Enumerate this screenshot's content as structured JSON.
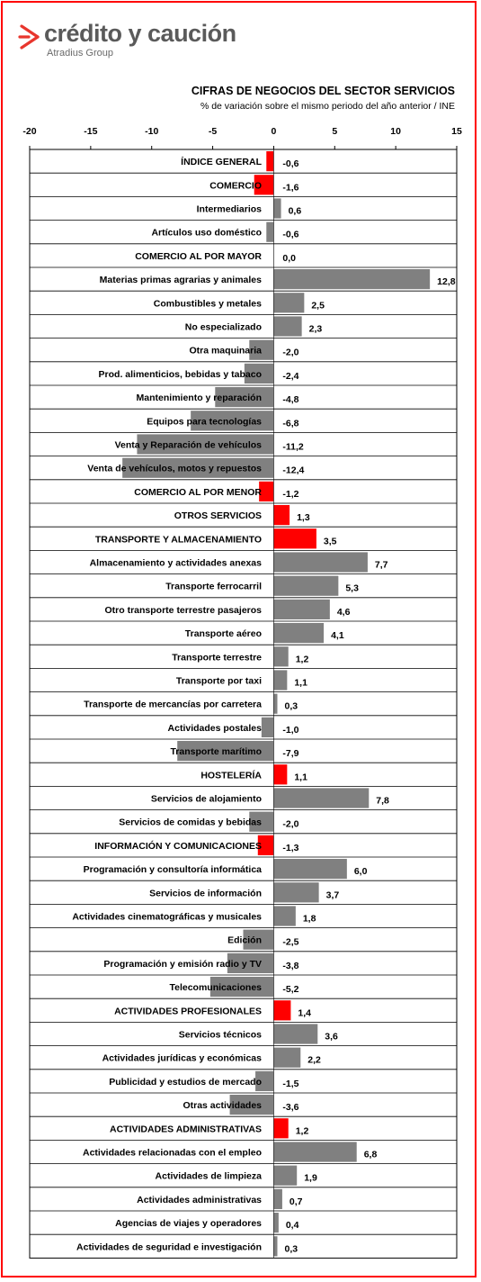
{
  "brand": {
    "name": "crédito y caución",
    "sub": "Atradius Group"
  },
  "colors": {
    "highlight": "#ff0000",
    "bar": "#808080",
    "frame": "#ff0000",
    "logo_accent": "#e8362d"
  },
  "chart_data": {
    "type": "bar",
    "orientation": "horizontal",
    "title": "CIFRAS DE NEGOCIOS DEL SECTOR SERVICIOS",
    "subtitle": "% de variación sobre el mismo periodo del año anterior / INE",
    "xlim": [
      -20,
      15
    ],
    "xticks": [
      -20,
      -15,
      -10,
      -5,
      0,
      5,
      10,
      15
    ],
    "xtick_labels": [
      "-20",
      "-15",
      "-10",
      "-5",
      "0",
      "5",
      "10",
      "15"
    ],
    "gridlines": "horizontal",
    "categories": [
      "ÍNDICE GENERAL",
      "COMERCIO",
      "Intermediarios",
      "Artículos uso doméstico",
      "COMERCIO AL POR MAYOR",
      "Materias primas agrarias  y animales",
      "Combustibles y metales",
      "No especializado",
      "Otra maquinaria",
      "Prod. alimenticios,  bebidas y tabaco",
      "Mantenimiento y reparación",
      "Equipos para tecnologías",
      "Venta y Reparación  de vehículos",
      "Venta de vehículos,  motos y repuestos",
      "COMERCIO AL POR MENOR",
      "OTROS SERVICIOS",
      "TRANSPORTE  Y ALMACENAMIENTO",
      "Almacenamiento y actividades  anexas",
      "Transporte ferrocarril",
      "Otro transporte terrestre pasajeros",
      "Transporte aéreo",
      "Transporte  terrestre",
      "Transporte  por taxi",
      "Transporte de mercancías  por carretera",
      "Actividades postales",
      "Transporte marítimo",
      "HOSTELERÍA",
      "Servicios de alojamiento",
      "Servicios de comidas y bebidas",
      "INFORMACIÓN Y COMUNICACIONES",
      "Programación y consultoría  informática",
      "Servicios de información",
      "Actividades cinematográficas  y musicales",
      "Edición",
      "Programación y emisión radio y TV",
      "Telecomunicaciones",
      "ACTIVIDADES PROFESIONALES",
      "Servicios técnicos",
      "Actividades jurídicas  y económicas",
      "Publicidad  y estudios de mercado",
      "Otras actividades",
      "ACTIVIDADES ADMINISTRATIVAS",
      "Actividades relacionadas  con el empleo",
      "Actividades de limpieza",
      "Actividades administrativas",
      "Agencias de viajes y operadores",
      "Actividades de seguridad e investigación"
    ],
    "values": [
      -0.6,
      -1.6,
      0.6,
      -0.6,
      0.0,
      12.8,
      2.5,
      2.3,
      -2.0,
      -2.4,
      -4.8,
      -6.8,
      -11.2,
      -12.4,
      -1.2,
      1.3,
      3.5,
      7.7,
      5.3,
      4.6,
      4.1,
      1.2,
      1.1,
      0.3,
      -1.0,
      -7.9,
      1.1,
      7.8,
      -2.0,
      -1.3,
      6.0,
      3.7,
      1.8,
      -2.5,
      -3.8,
      -5.2,
      1.4,
      3.6,
      2.2,
      -1.5,
      -3.6,
      1.2,
      6.8,
      1.9,
      0.7,
      0.4,
      0.3
    ],
    "value_labels": [
      "-0,6",
      "-1,6",
      "0,6",
      "-0,6",
      "0,0",
      "12,8",
      "2,5",
      "2,3",
      "-2,0",
      "-2,4",
      "-4,8",
      "-6,8",
      "-11,2",
      "-12,4",
      "-1,2",
      "1,3",
      "3,5",
      "7,7",
      "5,3",
      "4,6",
      "4,1",
      "1,2",
      "1,1",
      "0,3",
      "-1,0",
      "-7,9",
      "1,1",
      "7,8",
      "-2,0",
      "-1,3",
      "6,0",
      "3,7",
      "1,8",
      "-2,5",
      "-3,8",
      "-5,2",
      "1,4",
      "3,6",
      "2,2",
      "-1,5",
      "-3,6",
      "1,2",
      "6,8",
      "1,9",
      "0,7",
      "0,4",
      "0,3"
    ],
    "highlighted": [
      true,
      true,
      false,
      false,
      false,
      false,
      false,
      false,
      false,
      false,
      false,
      false,
      false,
      false,
      true,
      true,
      true,
      false,
      false,
      false,
      false,
      false,
      false,
      false,
      false,
      false,
      true,
      false,
      false,
      true,
      false,
      false,
      false,
      false,
      false,
      false,
      true,
      false,
      false,
      false,
      false,
      true,
      false,
      false,
      false,
      false,
      false
    ]
  }
}
